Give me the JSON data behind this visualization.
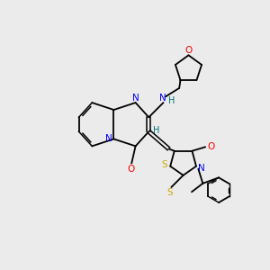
{
  "bg_color": "#ebebeb",
  "atom_colors": {
    "N": "#0000ff",
    "O": "#ff0000",
    "S": "#ccaa00",
    "H": "#007070",
    "C": "#000000"
  }
}
